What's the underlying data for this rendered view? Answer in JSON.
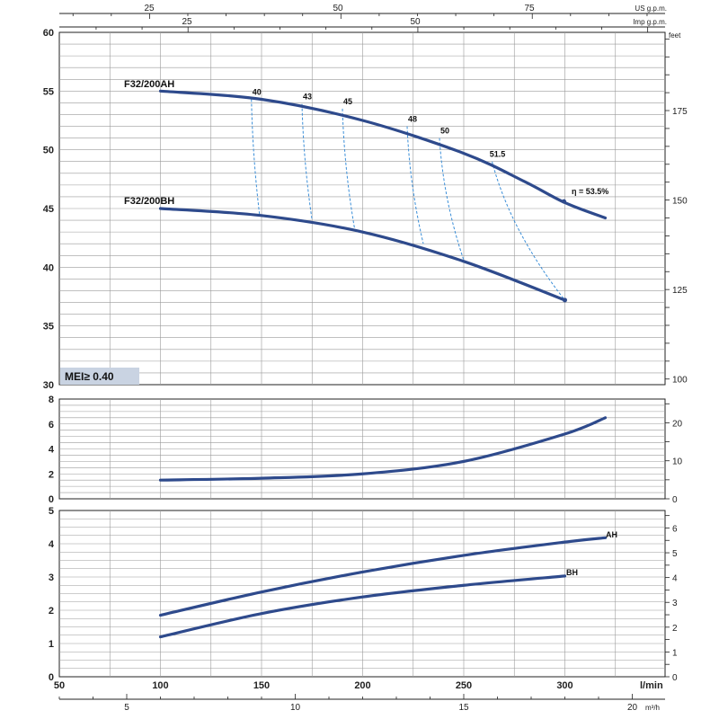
{
  "chart_data": [
    {
      "panel": "head",
      "type": "line",
      "ylabel_left_unit": "m",
      "ylabel_right_unit": "feet",
      "ylim": [
        30,
        60
      ],
      "yticks": [
        "30",
        "35",
        "40",
        "45",
        "50",
        "55",
        "60"
      ],
      "right_ylim_feet": [
        98.4,
        196.8
      ],
      "right_yticks": [
        "100",
        "125",
        "150",
        "175"
      ],
      "series": [
        {
          "name": "F32/200AH",
          "x": [
            100,
            150,
            200,
            250,
            280,
            300,
            320
          ],
          "y": [
            55,
            54.3,
            52.5,
            49.7,
            47.3,
            45.5,
            44.2
          ]
        },
        {
          "name": "F32/200BH",
          "x": [
            100,
            150,
            200,
            250,
            300
          ],
          "y": [
            45,
            44.4,
            43,
            40.5,
            37.2
          ]
        }
      ],
      "efficiency_labels": [
        "40",
        "43",
        "45",
        "48",
        "50",
        "51.5"
      ],
      "efficiency_max_label": "η = 53.5%",
      "badge": "MEI≥ 0.40"
    },
    {
      "panel": "npsh",
      "type": "line",
      "ylim": [
        0,
        8
      ],
      "yticks": [
        "0",
        "2",
        "4",
        "6",
        "8"
      ],
      "right_yticks": [
        "0",
        "10",
        "20"
      ],
      "series": [
        {
          "name": "NPSH",
          "x": [
            100,
            150,
            200,
            250,
            300,
            320
          ],
          "y": [
            1.5,
            1.65,
            2.0,
            3.0,
            5.2,
            6.5
          ]
        }
      ]
    },
    {
      "panel": "power",
      "type": "line",
      "ylim": [
        0,
        5
      ],
      "yticks": [
        "0",
        "1",
        "2",
        "3",
        "4",
        "5"
      ],
      "right_yticks": [
        "0",
        "1",
        "2",
        "3",
        "4",
        "5",
        "6"
      ],
      "series": [
        {
          "name": "AH",
          "x": [
            100,
            150,
            200,
            250,
            300,
            320
          ],
          "y": [
            1.85,
            2.55,
            3.15,
            3.65,
            4.05,
            4.18
          ]
        },
        {
          "name": "BH",
          "x": [
            100,
            150,
            200,
            250,
            300
          ],
          "y": [
            1.2,
            1.9,
            2.4,
            2.75,
            3.03
          ]
        }
      ]
    }
  ],
  "axes": {
    "x_main_unit": "l/min",
    "x_main_ticks": [
      "50",
      "100",
      "150",
      "200",
      "250",
      "300"
    ],
    "x_m3h_unit": "m³/h",
    "x_m3h_ticks": [
      "5",
      "10",
      "15",
      "20"
    ],
    "x_usgpm_unit": "US g.p.m.",
    "x_usgpm_ticks": [
      "25",
      "50",
      "75"
    ],
    "x_impgpm_unit": "Imp g.p.m.",
    "x_impgpm_ticks": [
      "25",
      "50"
    ]
  },
  "colors": {
    "curve": "#2e4a8c",
    "dashed": "#3a8ed8",
    "grid": "#9a9a9a",
    "badge_bg": "#c9d3e2"
  }
}
